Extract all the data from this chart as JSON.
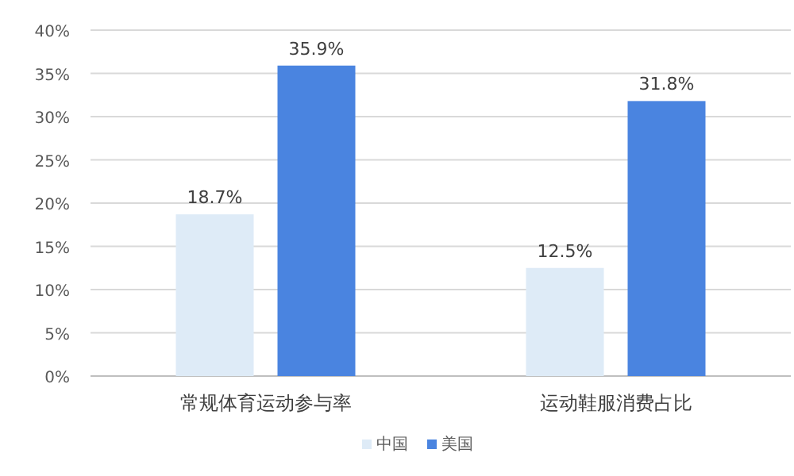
{
  "chart_data": {
    "type": "bar",
    "categories": [
      "常规体育运动参与率",
      "运动鞋服消费占比"
    ],
    "series": [
      {
        "name": "中国",
        "color": "#deebf7",
        "values": [
          18.7,
          12.5
        ],
        "value_labels": [
          "18.7%",
          "12.5%"
        ]
      },
      {
        "name": "美国",
        "color": "#4a84e0",
        "values": [
          35.9,
          31.8
        ],
        "value_labels": [
          "35.9%",
          "31.8%"
        ]
      }
    ],
    "ylim": [
      0,
      40
    ],
    "yticks": [
      {
        "value": 0,
        "label": "0%"
      },
      {
        "value": 5,
        "label": "5%"
      },
      {
        "value": 10,
        "label": "10%"
      },
      {
        "value": 15,
        "label": "15%"
      },
      {
        "value": 20,
        "label": "20%"
      },
      {
        "value": 25,
        "label": "25%"
      },
      {
        "value": 30,
        "label": "30%"
      },
      {
        "value": 35,
        "label": "35%"
      },
      {
        "value": 40,
        "label": "40%"
      }
    ],
    "grid": "y",
    "legend": "bottom"
  }
}
